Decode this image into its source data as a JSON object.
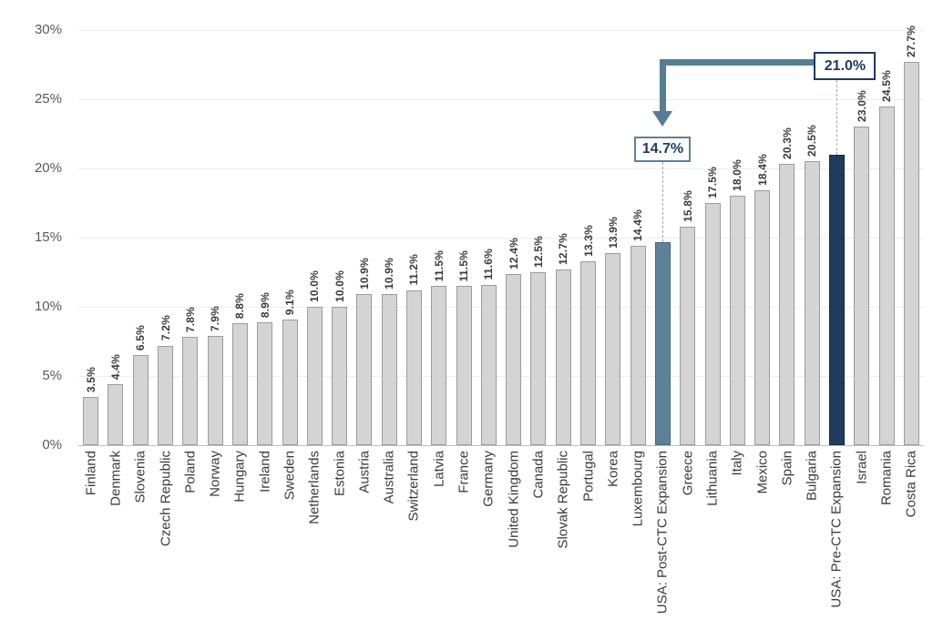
{
  "chart_data": {
    "type": "bar",
    "title": "",
    "xlabel": "",
    "ylabel": "",
    "ylim": [
      0,
      30
    ],
    "grid": true,
    "legend": null,
    "ytick_labels": [
      "0%",
      "5%",
      "10%",
      "15%",
      "20%",
      "25%",
      "30%"
    ],
    "categories": [
      "Finland",
      "Denmark",
      "Slovenia",
      "Czech Republic",
      "Poland",
      "Norway",
      "Hungary",
      "Ireland",
      "Sweden",
      "Netherlands",
      "Estonia",
      "Austria",
      "Australia",
      "Switzerland",
      "Latvia",
      "France",
      "Germany",
      "United Kingdom",
      "Canada",
      "Slovak Republic",
      "Portugal",
      "Korea",
      "Luxembourg",
      "USA: Post-CTC Expansion",
      "Greece",
      "Lithuania",
      "Italy",
      "Mexico",
      "Spain",
      "Bulgaria",
      "USA: Pre-CTC Expansion",
      "Israel",
      "Romania",
      "Costa Rica"
    ],
    "values": [
      3.5,
      4.4,
      6.5,
      7.2,
      7.8,
      7.9,
      8.8,
      8.9,
      9.1,
      10.0,
      10.0,
      10.9,
      10.9,
      11.2,
      11.5,
      11.5,
      11.6,
      12.4,
      12.5,
      12.7,
      13.3,
      13.9,
      14.4,
      14.7,
      15.8,
      17.5,
      18.0,
      18.4,
      20.3,
      20.5,
      21.0,
      23.0,
      24.5,
      27.7
    ],
    "bar_value_labels": [
      "3.5%",
      "4.4%",
      "6.5%",
      "7.2%",
      "7.8%",
      "7.9%",
      "8.8%",
      "8.9%",
      "9.1%",
      "10.0%",
      "10.0%",
      "10.9%",
      "10.9%",
      "11.2%",
      "11.5%",
      "11.5%",
      "11.6%",
      "12.4%",
      "12.5%",
      "12.7%",
      "13.3%",
      "13.9%",
      "14.4%",
      "",
      "15.8%",
      "17.5%",
      "18.0%",
      "18.4%",
      "20.3%",
      "20.5%",
      "",
      "23.0%",
      "24.5%",
      "27.7%"
    ],
    "callouts": {
      "post": {
        "label": "14.7%",
        "category": "USA: Post-CTC Expansion",
        "index": 23,
        "border_color": "#5b8299"
      },
      "pre": {
        "label": "21.0%",
        "category": "USA: Pre-CTC Expansion",
        "index": 30,
        "border_color": "#1f3a5f"
      }
    },
    "arrow": {
      "from": "pre-ctc callout",
      "to": "post-ctc bar",
      "style": "elbow down-arrow"
    },
    "colors": {
      "bar_default": "#d4d4d4",
      "bar_default_border": "#9b9b9b",
      "bar_post_ctc": "#5b8299",
      "bar_post_ctc_border": "#44697e",
      "bar_pre_ctc": "#203a60",
      "bar_pre_ctc_border": "#16283f",
      "arrow": "#567d93",
      "gridline": "#ededed",
      "axis_line": "#bfbfbf",
      "tick_text": "#595959",
      "label_text": "#3b3b3b",
      "callout_text": "#1f3a5f"
    }
  }
}
